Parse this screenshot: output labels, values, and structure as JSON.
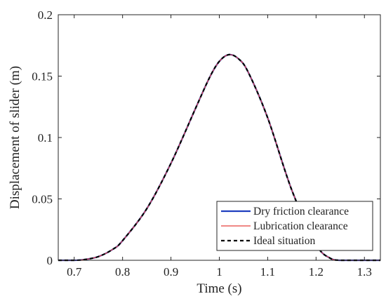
{
  "chart_data": {
    "type": "line",
    "title": "",
    "xlabel": "Time (s)",
    "ylabel": "Displacement of slider (m)",
    "xlim": [
      0.667,
      1.333
    ],
    "ylim": [
      0,
      0.2
    ],
    "grid": false,
    "legend_position": "bottom-right",
    "x_ticks": [
      0.7,
      0.8,
      0.9,
      1.0,
      1.1,
      1.2,
      1.3
    ],
    "x_tick_labels": [
      "0.7",
      "0.8",
      "0.9",
      "1",
      "1.1",
      "1.2",
      "1.3"
    ],
    "y_ticks": [
      0,
      0.05,
      0.1,
      0.15,
      0.2
    ],
    "y_tick_labels": [
      "0",
      "0.05",
      "0.1",
      "0.15",
      "0.2"
    ],
    "x": [
      0.667,
      0.7,
      0.72,
      0.75,
      0.78,
      0.8,
      0.85,
      0.9,
      0.95,
      0.98,
      1.0,
      1.02,
      1.04,
      1.06,
      1.1,
      1.15,
      1.2,
      1.23,
      1.25,
      1.3,
      1.333
    ],
    "series": [
      {
        "name": "Dry friction clearance",
        "color": "#1f3fbf",
        "style": "solid",
        "y": [
          0,
          0,
          0.0005,
          0.003,
          0.009,
          0.016,
          0.042,
          0.079,
          0.123,
          0.149,
          0.162,
          0.1675,
          0.164,
          0.153,
          0.116,
          0.057,
          0.013,
          0.0015,
          0,
          0,
          0
        ]
      },
      {
        "name": "Lubrication clearance",
        "color": "#e8413c",
        "style": "solid",
        "y": [
          0,
          0,
          0.0005,
          0.003,
          0.009,
          0.016,
          0.042,
          0.079,
          0.123,
          0.149,
          0.162,
          0.1675,
          0.164,
          0.153,
          0.116,
          0.057,
          0.013,
          0.0015,
          0,
          0,
          0
        ]
      },
      {
        "name": "Ideal situation",
        "color": "#000000",
        "style": "dashed",
        "y": [
          0,
          0,
          0.0005,
          0.003,
          0.009,
          0.016,
          0.042,
          0.079,
          0.123,
          0.149,
          0.162,
          0.1675,
          0.164,
          0.153,
          0.116,
          0.057,
          0.013,
          0.0015,
          0,
          0,
          0
        ]
      }
    ]
  }
}
